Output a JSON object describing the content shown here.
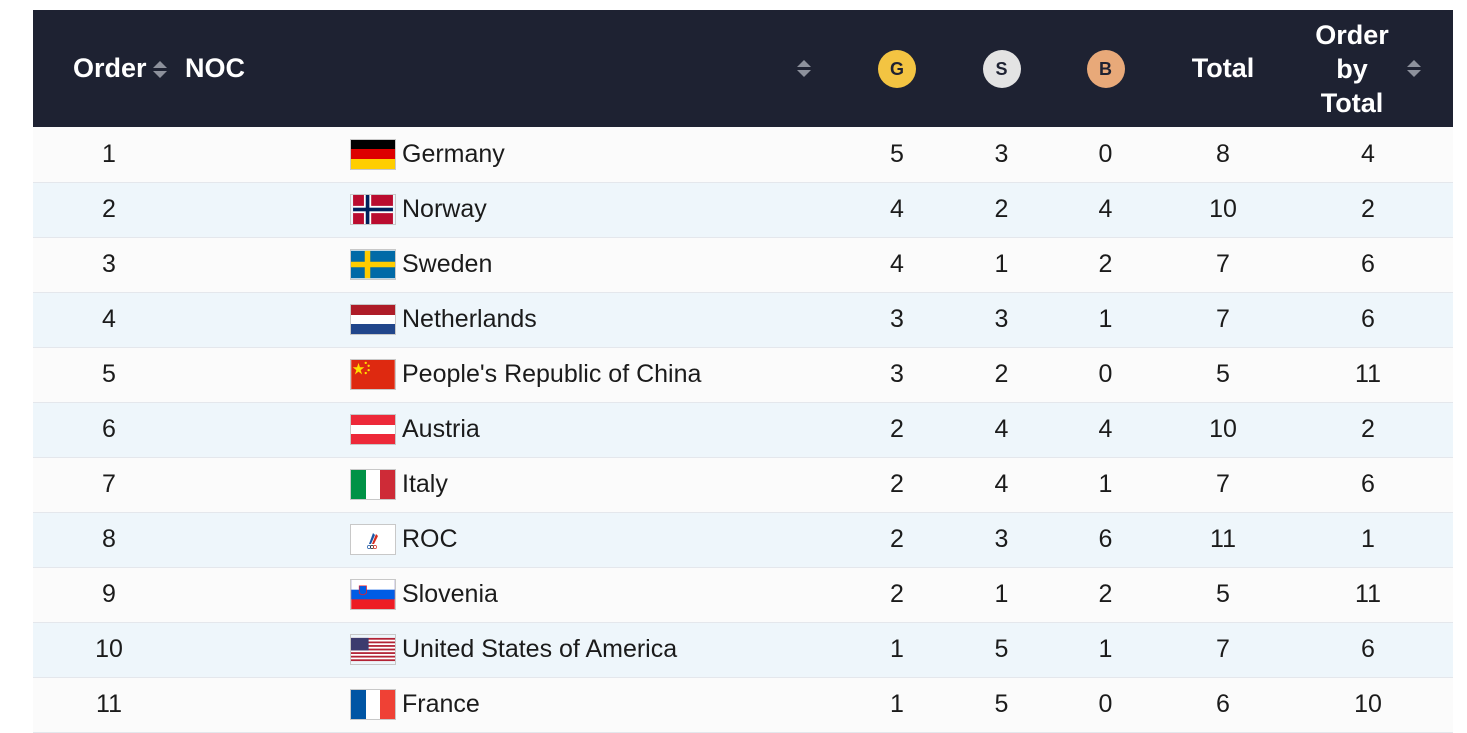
{
  "header": {
    "order": "Order",
    "noc": "NOC",
    "gold": "G",
    "silver": "S",
    "bronze": "B",
    "total": "Total",
    "order_by_total_l1": "Order",
    "order_by_total_l2": "by",
    "order_by_total_l3": "Total"
  },
  "colors": {
    "header_bg": "#1e2232",
    "gold": "#f3c442",
    "silver": "#e3e3e3",
    "bronze": "#e8a979",
    "row_alt": "#eef6fb"
  },
  "rows": [
    {
      "order": "1",
      "noc": "Germany",
      "flag": "flag-germany",
      "g": "5",
      "s": "3",
      "b": "0",
      "total": "8",
      "order_by_total": "4"
    },
    {
      "order": "2",
      "noc": "Norway",
      "flag": "flag-norway",
      "g": "4",
      "s": "2",
      "b": "4",
      "total": "10",
      "order_by_total": "2"
    },
    {
      "order": "3",
      "noc": "Sweden",
      "flag": "flag-sweden",
      "g": "4",
      "s": "1",
      "b": "2",
      "total": "7",
      "order_by_total": "6"
    },
    {
      "order": "4",
      "noc": "Netherlands",
      "flag": "flag-netherlands",
      "g": "3",
      "s": "3",
      "b": "1",
      "total": "7",
      "order_by_total": "6"
    },
    {
      "order": "5",
      "noc": "People's Republic of China",
      "flag": "flag-china",
      "g": "3",
      "s": "2",
      "b": "0",
      "total": "5",
      "order_by_total": "11"
    },
    {
      "order": "6",
      "noc": "Austria",
      "flag": "flag-austria",
      "g": "2",
      "s": "4",
      "b": "4",
      "total": "10",
      "order_by_total": "2"
    },
    {
      "order": "7",
      "noc": "Italy",
      "flag": "flag-italy",
      "g": "2",
      "s": "4",
      "b": "1",
      "total": "7",
      "order_by_total": "6"
    },
    {
      "order": "8",
      "noc": "ROC",
      "flag": "flag-roc",
      "g": "2",
      "s": "3",
      "b": "6",
      "total": "11",
      "order_by_total": "1"
    },
    {
      "order": "9",
      "noc": "Slovenia",
      "flag": "flag-slovenia",
      "g": "2",
      "s": "1",
      "b": "2",
      "total": "5",
      "order_by_total": "11"
    },
    {
      "order": "10",
      "noc": "United States of America",
      "flag": "flag-usa",
      "g": "1",
      "s": "5",
      "b": "1",
      "total": "7",
      "order_by_total": "6"
    },
    {
      "order": "11",
      "noc": "France",
      "flag": "flag-france",
      "g": "1",
      "s": "5",
      "b": "0",
      "total": "6",
      "order_by_total": "10"
    }
  ]
}
